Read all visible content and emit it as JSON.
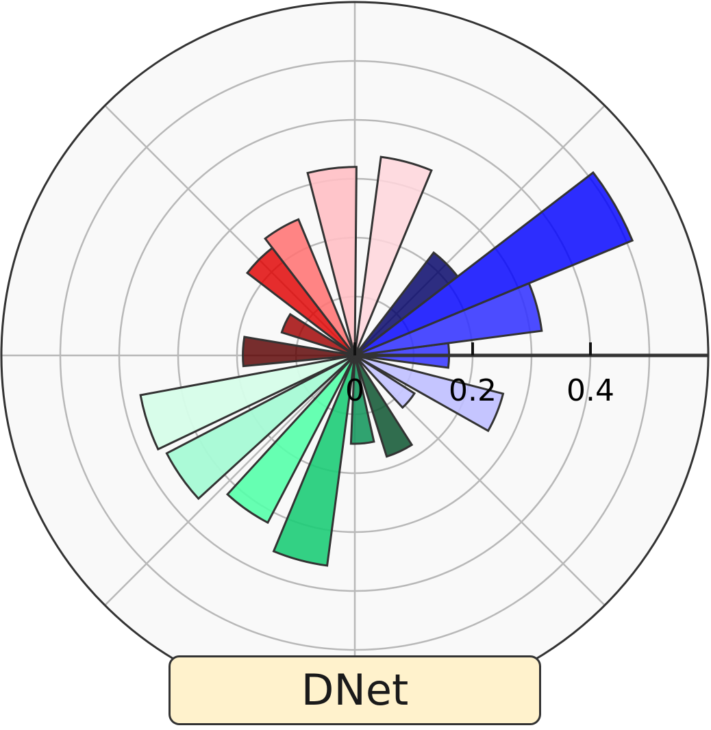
{
  "chart_data": {
    "type": "bar",
    "projection": "polar",
    "title": "DNet",
    "radial_ticks": [
      "0",
      "0.2",
      "0.4"
    ],
    "radial_tick_values": [
      0,
      0.2,
      0.4
    ],
    "rlim": [
      0,
      0.6
    ],
    "grid": true,
    "bars": [
      {
        "angle_deg": 0,
        "value": 0.16,
        "color": "#3333ff",
        "opacity": 0.85
      },
      {
        "angle_deg": 15,
        "value": 0.32,
        "color": "#3333ff",
        "opacity": 0.88
      },
      {
        "angle_deg": 30,
        "value": 0.51,
        "color": "#0000ff",
        "opacity": 0.82
      },
      {
        "angle_deg": 45,
        "value": 0.22,
        "color": "#000066",
        "opacity": 0.82
      },
      {
        "angle_deg": 75,
        "value": 0.34,
        "color": "#ffd6dc",
        "opacity": 0.85
      },
      {
        "angle_deg": 97,
        "value": 0.32,
        "color": "#ffbfc4",
        "opacity": 0.9
      },
      {
        "angle_deg": 120,
        "value": 0.25,
        "color": "#ff7373",
        "opacity": 0.88
      },
      {
        "angle_deg": 135,
        "value": 0.23,
        "color": "#e00000",
        "opacity": 0.82
      },
      {
        "angle_deg": 155,
        "value": 0.13,
        "color": "#a00000",
        "opacity": 0.82
      },
      {
        "angle_deg": 178,
        "value": 0.19,
        "color": "#5a0000",
        "opacity": 0.82
      },
      {
        "angle_deg": 198,
        "value": 0.37,
        "color": "#d6fde9",
        "opacity": 0.95
      },
      {
        "angle_deg": 215,
        "value": 0.36,
        "color": "#a6fad5",
        "opacity": 0.95
      },
      {
        "angle_deg": 235,
        "value": 0.32,
        "color": "#55ffaa",
        "opacity": 0.9
      },
      {
        "angle_deg": 255,
        "value": 0.36,
        "color": "#1dcc77",
        "opacity": 0.9
      },
      {
        "angle_deg": 275,
        "value": 0.15,
        "color": "#1a9960",
        "opacity": 0.9
      },
      {
        "angle_deg": 295,
        "value": 0.18,
        "color": "#0d5530",
        "opacity": 0.85
      },
      {
        "angle_deg": 320,
        "value": 0.12,
        "color": "#c6c6ff",
        "opacity": 0.95
      },
      {
        "angle_deg": 338,
        "value": 0.26,
        "color": "#bfbfff",
        "opacity": 0.9
      }
    ]
  },
  "style": {
    "background": "#f9f9f9",
    "grid_color": "#b8b8b8",
    "outline_color": "#333333",
    "bar_edge_color": "#333333",
    "title_box_fill": "#fff2cc"
  }
}
